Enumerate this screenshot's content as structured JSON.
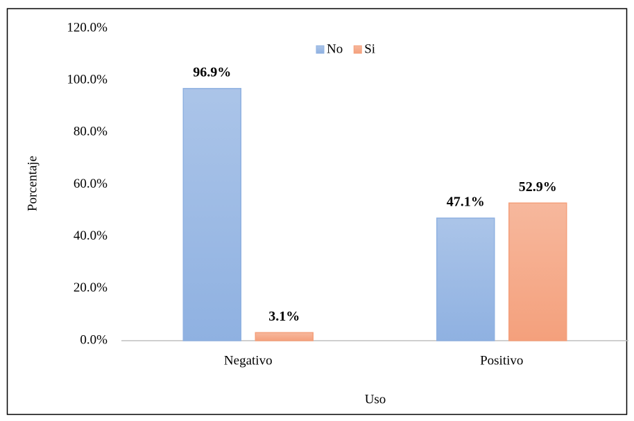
{
  "chart_data": {
    "type": "bar",
    "categories": [
      "Negativo",
      "Positivo"
    ],
    "series": [
      {
        "name": "No",
        "color": "#8fb1e1",
        "values": [
          96.9,
          47.1
        ],
        "value_labels": [
          "96.9%",
          "47.1%"
        ]
      },
      {
        "name": "Si",
        "color": "#f4a07c",
        "values": [
          3.1,
          52.9
        ],
        "value_labels": [
          "3.1%",
          "52.9%"
        ]
      }
    ],
    "xlabel": "Uso",
    "ylabel": "Porcentaje",
    "ylim": [
      0,
      120
    ],
    "yticks": [
      {
        "value": 0,
        "label": "0.0%"
      },
      {
        "value": 20,
        "label": "20.0%"
      },
      {
        "value": 40,
        "label": "40.0%"
      },
      {
        "value": 60,
        "label": "60.0%"
      },
      {
        "value": 80,
        "label": "80.0%"
      },
      {
        "value": 100,
        "label": "100.0%"
      },
      {
        "value": 120,
        "label": "120.0%"
      }
    ],
    "legend": "top",
    "grid": false
  }
}
